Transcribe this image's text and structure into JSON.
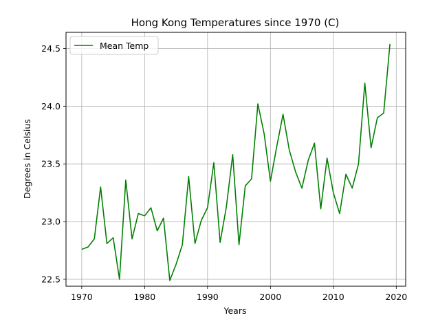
{
  "chart_data": {
    "type": "line",
    "title": "Hong Kong Temperatures since 1970 (C)",
    "xlabel": "Years",
    "ylabel": "Degrees in Celsius",
    "xlim": [
      1967.5,
      2021.5
    ],
    "ylim": [
      22.44,
      24.64
    ],
    "xticks": [
      1970,
      1980,
      1990,
      2000,
      2010,
      2020
    ],
    "yticks": [
      22.5,
      23.0,
      23.5,
      24.0,
      24.5
    ],
    "ytick_labels": [
      "22.5",
      "23.0",
      "23.5",
      "24.0",
      "24.5"
    ],
    "grid": true,
    "legend": {
      "position": "top-left"
    },
    "series": [
      {
        "name": "Mean Temp",
        "color": "#008000",
        "x": [
          1970,
          1971,
          1972,
          1973,
          1974,
          1975,
          1976,
          1977,
          1978,
          1979,
          1980,
          1981,
          1982,
          1983,
          1984,
          1985,
          1986,
          1987,
          1988,
          1989,
          1990,
          1991,
          1992,
          1993,
          1994,
          1995,
          1996,
          1997,
          1998,
          1999,
          2000,
          2001,
          2002,
          2003,
          2004,
          2005,
          2006,
          2007,
          2008,
          2009,
          2010,
          2011,
          2012,
          2013,
          2014,
          2015,
          2016,
          2017,
          2018,
          2019
        ],
        "values": [
          22.76,
          22.78,
          22.85,
          23.3,
          22.81,
          22.86,
          22.5,
          23.36,
          22.85,
          23.07,
          23.05,
          23.12,
          22.92,
          23.03,
          22.49,
          22.63,
          22.8,
          23.39,
          22.81,
          23.01,
          23.12,
          23.51,
          22.82,
          23.13,
          23.58,
          22.8,
          23.31,
          23.37,
          24.02,
          23.76,
          23.35,
          23.65,
          23.93,
          23.62,
          23.43,
          23.29,
          23.53,
          23.68,
          23.11,
          23.55,
          23.25,
          23.07,
          23.41,
          23.29,
          23.5,
          24.2,
          23.64,
          23.9,
          23.94,
          24.54
        ]
      }
    ]
  }
}
